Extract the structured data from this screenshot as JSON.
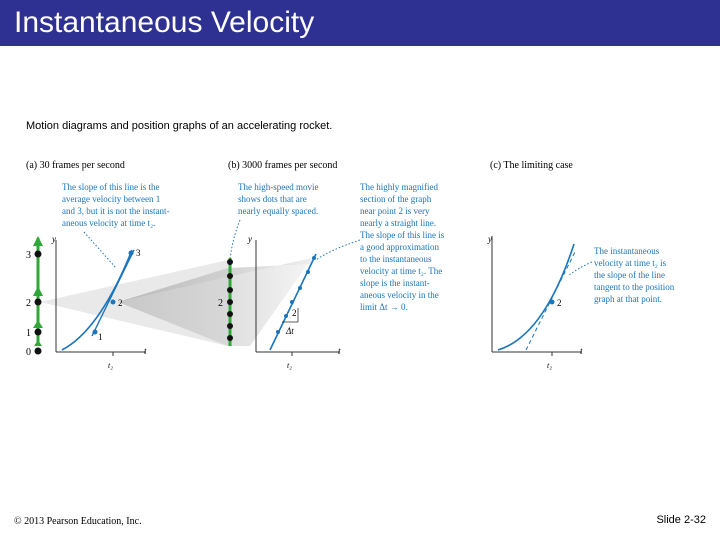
{
  "header": {
    "title": "Instantaneous Velocity"
  },
  "caption": "Motion diagrams and position graphs of an accelerating rocket.",
  "figure": {
    "panel_a": {
      "heading": "(a) 30 frames per second",
      "note_lines": [
        "The slope of this line is the",
        "average velocity between 1",
        "and 3, but it is not the instant-",
        "aneous velocity at time t₂."
      ],
      "dot_labels": [
        "3",
        "2",
        "1",
        "0"
      ],
      "point_labels": [
        "3",
        "2",
        "1"
      ],
      "axis_y": "y",
      "axis_t": "t",
      "tick": "t₂"
    },
    "panel_b": {
      "heading": "(b) 3000 frames per second",
      "note_left_lines": [
        "The high-speed movie",
        "shows dots that are",
        "nearly equally spaced."
      ],
      "note_right_lines": [
        "The highly magnified",
        "section of the graph",
        "near point 2 is very",
        "nearly a straight line.",
        "The slope of this line is",
        "a good approximation",
        "to the instantaneous",
        "velocity at time t₂. The",
        "slope is the instant-",
        "aneous velocity in the",
        "limit Δt → 0."
      ],
      "dot_label": "2",
      "point_label": "2",
      "dt_label": "Δt",
      "axis_y": "y",
      "axis_t": "t",
      "tick": "t₂"
    },
    "panel_c": {
      "heading": "(c) The limiting case",
      "note_lines": [
        "The instantaneous",
        "velocity at time t₂ is",
        "the slope of the line",
        "tangent to the position",
        "graph at that point."
      ],
      "point_label": "2",
      "axis_y": "y",
      "axis_t": "t",
      "tick": "t₂"
    }
  },
  "footer": {
    "copyright": "© 2013 Pearson Education, Inc.",
    "slide": "Slide 2-32"
  },
  "colors": {
    "title_bg": "#2e3192",
    "annotation": "#1b75bc",
    "dot_green": "#2ea836",
    "curve": "#1b75bc"
  }
}
